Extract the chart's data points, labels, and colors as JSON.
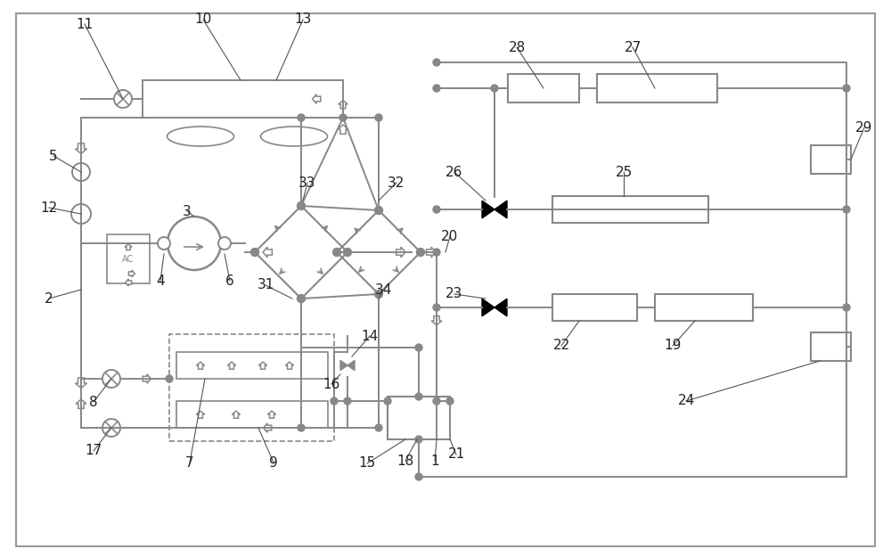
{
  "bg_color": "#ffffff",
  "lc": "#888888",
  "lw": 1.4,
  "dark": "#333333",
  "black": "#000000"
}
